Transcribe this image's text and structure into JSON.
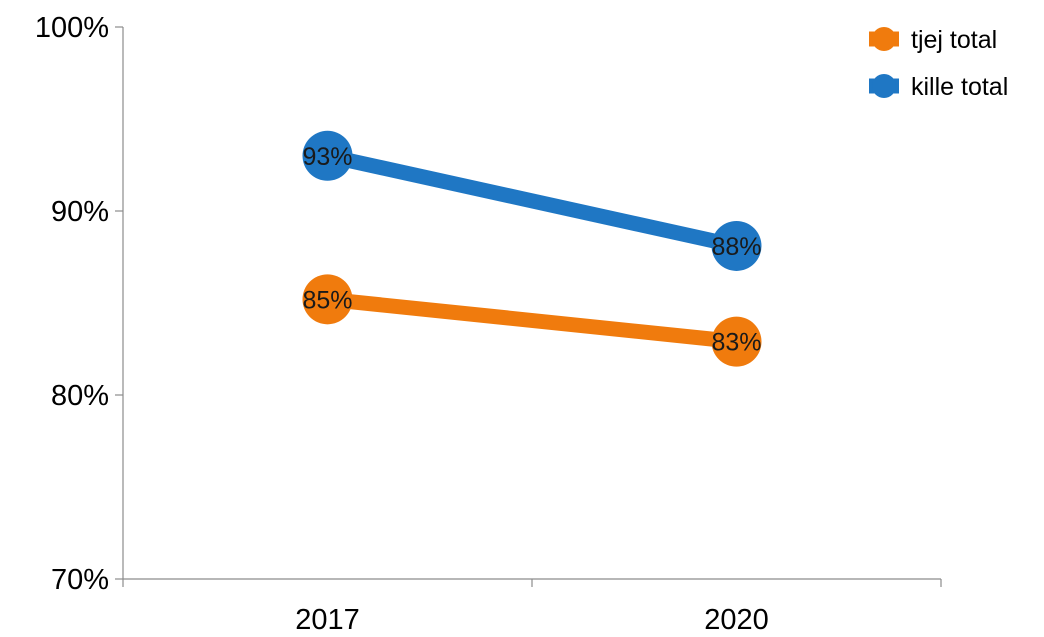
{
  "chart_data": {
    "type": "line",
    "categories": [
      "2017",
      "2020"
    ],
    "series": [
      {
        "name": "tjej total",
        "color": "#F07B0D",
        "values": [
          0.852,
          0.829
        ],
        "labels": [
          "85%",
          "83%"
        ]
      },
      {
        "name": "kille total",
        "color": "#1F77C4",
        "values": [
          0.93,
          0.881
        ],
        "labels": [
          "93%",
          "88%"
        ]
      }
    ],
    "ylim": [
      0.7,
      1.0
    ],
    "yticks": [
      {
        "value": 0.7,
        "label": "70%"
      },
      {
        "value": 0.8,
        "label": "80%"
      },
      {
        "value": 0.9,
        "label": "90%"
      },
      {
        "value": 1.0,
        "label": "100%"
      }
    ],
    "title": "",
    "xlabel": "",
    "ylabel": "",
    "grid": false,
    "legend_position": "top-right"
  }
}
